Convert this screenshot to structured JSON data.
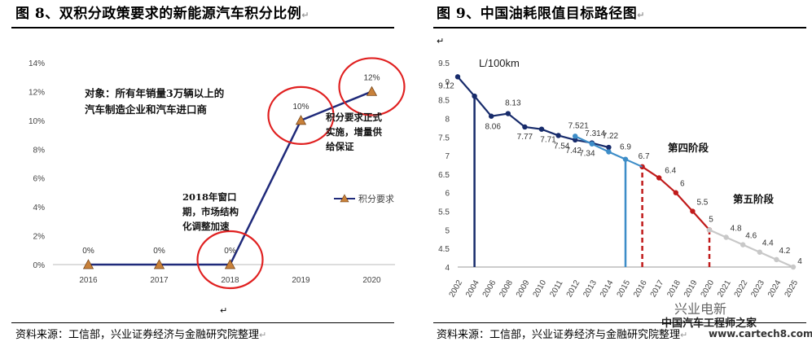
{
  "page": {
    "return_mark": "↵",
    "colors": {
      "navy": "#1f2a7a",
      "red_circle": "#e02020",
      "dark_navy": "#172b6b",
      "light_blue": "#3d8dc8",
      "dark_red": "#c01a1a",
      "grey": "#c8c8c8"
    }
  },
  "left": {
    "title": "图 8、双积分政策要求的新能源汽车积分比例",
    "source": "资料来源：工信部，兴业证券经济与金融研究院整理",
    "legend": "积分要求",
    "annotations": [
      "对象：所有年销量3万辆以上的",
      "汽车制造企业和汽车进口商",
      "积分要求正式",
      "实施，增量供",
      "给保证",
      "2018年窗口",
      "期，市场结构",
      "化调整加速"
    ]
  },
  "right": {
    "title": "图 9、中国油耗限值目标路径图",
    "source": "资料来源：工信部，兴业证券经济与金融研究院整理",
    "unit": "L/100km",
    "stage4": "第四阶段",
    "stage5": "第五阶段",
    "watermark": [
      "兴业电新",
      "中国汽车工程师之家",
      "www.cartech8.com"
    ]
  },
  "chart_data": [
    {
      "type": "line",
      "title": "图 8、双积分政策要求的新能源汽车积分比例",
      "categories": [
        "2016",
        "2017",
        "2018",
        "2019",
        "2020"
      ],
      "series": [
        {
          "name": "积分要求",
          "values": [
            0,
            0,
            0,
            10,
            12
          ]
        }
      ],
      "data_labels": [
        "0%",
        "0%",
        "0%",
        "10%",
        "12%"
      ],
      "ylim": [
        0,
        14
      ],
      "yticks": [
        0,
        2,
        4,
        6,
        8,
        10,
        12,
        14
      ],
      "ytick_labels": [
        "0%",
        "2%",
        "4%",
        "6%",
        "8%",
        "10%",
        "12%",
        "14%"
      ],
      "legend": "right",
      "highlighted": [
        "2018",
        "2019",
        "2020"
      ]
    },
    {
      "type": "line",
      "title": "图 9、中国油耗限值目标路径图",
      "ylabel": "L/100km",
      "ylim": [
        4,
        9.5
      ],
      "yticks": [
        4,
        4.5,
        5,
        5.5,
        6,
        6.5,
        7,
        7.5,
        8,
        8.5,
        9,
        9.5
      ],
      "xticks": [
        "2002",
        "2004",
        "2006",
        "2008",
        "2009",
        "2010",
        "2011",
        "2012",
        "2013",
        "2014",
        "2015",
        "2016",
        "2017",
        "2018",
        "2019",
        "2020",
        "2021",
        "2022",
        "2023",
        "2024",
        "2025"
      ],
      "series": [
        {
          "name": "stage1-3",
          "points": [
            [
              "2002",
              9.12
            ],
            [
              "2004",
              8.6
            ],
            [
              "2006",
              8.06
            ],
            [
              "2008",
              8.13
            ],
            [
              "2009",
              7.77
            ],
            [
              "2010",
              7.71
            ],
            [
              "2011",
              7.54
            ],
            [
              "2012",
              7.42
            ],
            [
              "2013",
              7.34
            ],
            [
              "2014",
              7.22
            ]
          ]
        },
        {
          "name": "stage3-b",
          "points": [
            [
              "2012",
              7.521
            ],
            [
              "2013",
              7.314
            ],
            [
              "2014",
              7.1
            ],
            [
              "2015",
              6.9
            ]
          ]
        },
        {
          "name": "第四阶段",
          "points": [
            [
              "2016",
              6.7
            ],
            [
              "2017",
              6.4
            ],
            [
              "2018",
              6.0
            ],
            [
              "2019",
              5.5
            ],
            [
              "2020",
              5.0
            ]
          ]
        },
        {
          "name": "第五阶段",
          "points": [
            [
              "2020",
              5.0
            ],
            [
              "2021",
              4.8
            ],
            [
              "2022",
              4.6
            ],
            [
              "2023",
              4.4
            ],
            [
              "2024",
              4.2
            ],
            [
              "2025",
              4.0
            ]
          ]
        }
      ],
      "point_labels": [
        [
          "2002",
          9.12,
          "9.12"
        ],
        [
          "2006",
          8.06,
          "8.06"
        ],
        [
          "2008",
          8.13,
          "8.13"
        ],
        [
          "2009",
          7.77,
          "7.77"
        ],
        [
          "2010",
          7.71,
          "7.71"
        ],
        [
          "2011",
          7.54,
          "7.54"
        ],
        [
          "2012",
          7.42,
          "7.42"
        ],
        [
          "2012",
          7.521,
          "7.521"
        ],
        [
          "2013",
          7.34,
          "7.34"
        ],
        [
          "2013",
          7.314,
          "7.314"
        ],
        [
          "2014",
          7.22,
          "7.22"
        ],
        [
          "2015",
          6.9,
          "6.9"
        ],
        [
          "2016",
          6.7,
          "6.7"
        ],
        [
          "2017",
          6.4,
          "6.4"
        ],
        [
          "2018",
          6.0,
          "6"
        ],
        [
          "2019",
          5.5,
          "5.5"
        ],
        [
          "2020",
          5.0,
          "5"
        ],
        [
          "2021",
          4.8,
          "4.8"
        ],
        [
          "2022",
          4.6,
          "4.6"
        ],
        [
          "2023",
          4.4,
          "4.4"
        ],
        [
          "2024",
          4.2,
          "4.2"
        ],
        [
          "2025",
          4.0,
          "4"
        ]
      ],
      "vertical_lines": [
        [
          "2004",
          "solid"
        ],
        [
          "2015",
          "solid"
        ],
        [
          "2016",
          "dashed"
        ],
        [
          "2020",
          "dashed"
        ]
      ]
    }
  ]
}
